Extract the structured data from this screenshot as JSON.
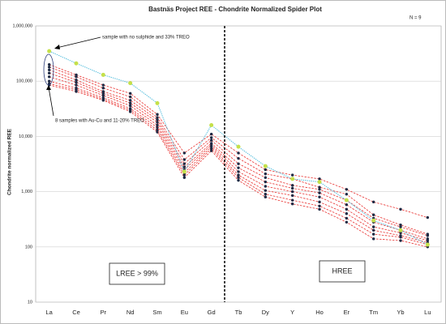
{
  "chart_data": {
    "type": "line",
    "title": "Bastnäs Project REE - Chondrite Normalized Spider Plot",
    "note": "N = 9",
    "y_label": "Chondrite normalized REE",
    "log_scale": true,
    "grid": true,
    "annotations": [
      "sample with no sulphide and 33% TREO",
      "8 samples with Au-Cu and 11-20% TREO",
      "LREE > 99%",
      "HREE"
    ],
    "categories": [
      "La",
      "Ce",
      "Pr",
      "Nd",
      "Sm",
      "Eu",
      "Gd",
      "Tb",
      "Dy",
      "Y",
      "Ho",
      "Er",
      "Tm",
      "Yb",
      "Lu"
    ],
    "ylim": [
      10,
      1000000
    ],
    "yticks": [
      10,
      100,
      {
        "value": 1000,
        "label": "1,000"
      },
      {
        "value": 10000,
        "label": "10,000"
      },
      {
        "value": 100000,
        "label": "100,000"
      },
      {
        "value": 1000000,
        "label": "1,000,000"
      }
    ],
    "series": [
      {
        "color": "#5bc0de",
        "marker_color": "#c5e04a",
        "values": [
          350000,
          210000,
          130000,
          92000,
          40000,
          2300,
          16000,
          6500,
          2900,
          1700,
          1500,
          700,
          300,
          200,
          110
        ]
      },
      {
        "color": "#e8312f",
        "marker_color": "#1f2a44",
        "values": [
          200000,
          130000,
          85000,
          60000,
          25000,
          5000,
          11000,
          5000,
          2500,
          2000,
          1700,
          1100,
          650,
          480,
          340
        ]
      },
      {
        "color": "#e8312f",
        "marker_color": "#1f2a44",
        "values": [
          180000,
          120000,
          75000,
          52000,
          22000,
          3800,
          9500,
          4000,
          2100,
          1700,
          1200,
          900,
          380,
          250,
          170
        ]
      },
      {
        "color": "#e8312f",
        "marker_color": "#1f2a44",
        "values": [
          160000,
          105000,
          65000,
          45000,
          20000,
          3200,
          8500,
          3200,
          1800,
          1300,
          1100,
          700,
          330,
          230,
          160
        ]
      },
      {
        "color": "#e8312f",
        "marker_color": "#1f2a44",
        "values": [
          140000,
          95000,
          60000,
          40000,
          18000,
          2800,
          7500,
          2700,
          1500,
          1150,
          950,
          580,
          280,
          200,
          140
        ]
      },
      {
        "color": "#e8312f",
        "marker_color": "#1f2a44",
        "values": [
          120000,
          85000,
          55000,
          36000,
          16000,
          2500,
          7000,
          2300,
          1250,
          1000,
          800,
          480,
          230,
          180,
          130
        ]
      },
      {
        "color": "#e8312f",
        "marker_color": "#1f2a44",
        "values": [
          100000,
          75000,
          50000,
          32000,
          14500,
          2200,
          6500,
          2000,
          1050,
          850,
          650,
          400,
          200,
          160,
          120
        ]
      },
      {
        "color": "#e8312f",
        "marker_color": "#1f2a44",
        "values": [
          90000,
          70000,
          47000,
          30000,
          13000,
          2000,
          6000,
          1800,
          900,
          700,
          550,
          330,
          170,
          150,
          110
        ]
      },
      {
        "color": "#e8312f",
        "marker_color": "#1f2a44",
        "values": [
          85000,
          65000,
          45000,
          28000,
          12000,
          1800,
          5500,
          1600,
          800,
          600,
          480,
          280,
          140,
          130,
          100
        ]
      }
    ]
  }
}
